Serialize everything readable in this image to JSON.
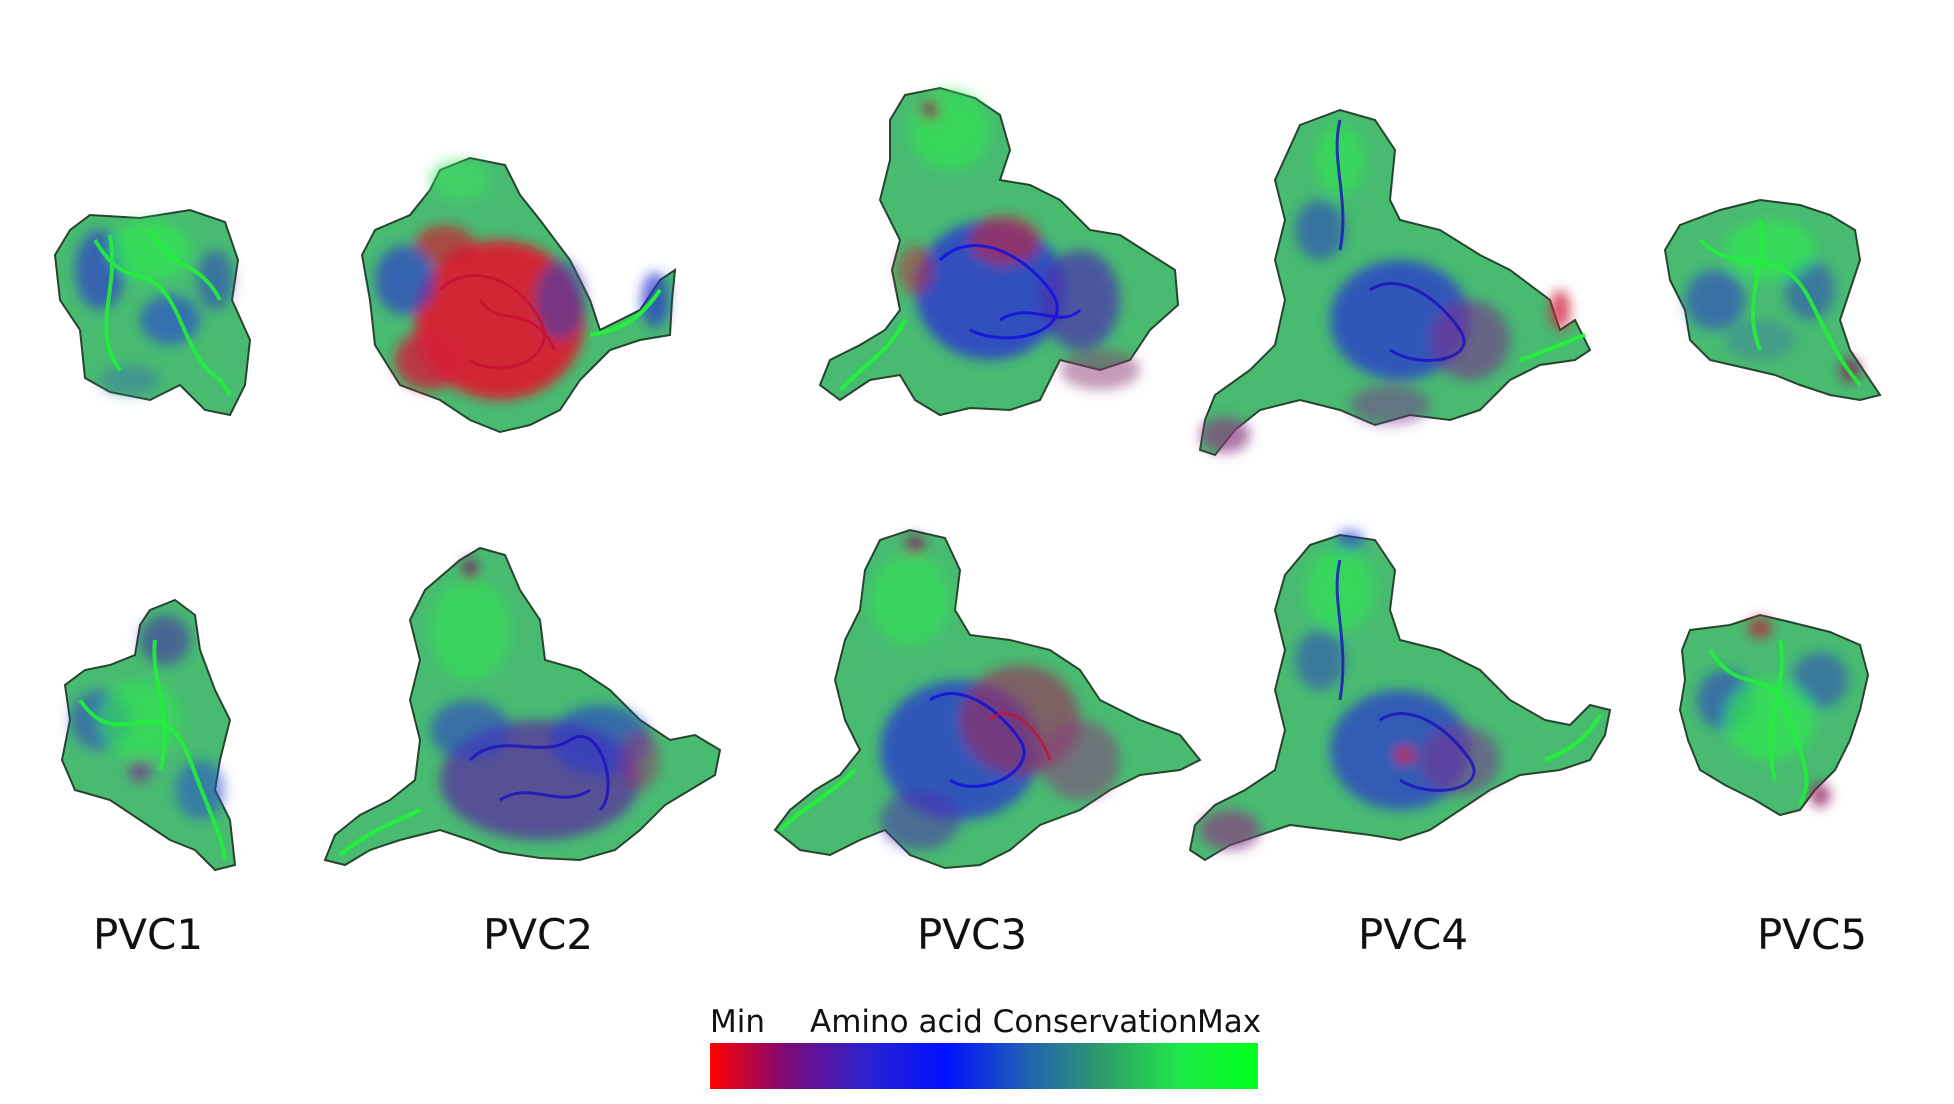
{
  "figure": {
    "proteins": [
      {
        "id": "pvc1",
        "label": "PVC1"
      },
      {
        "id": "pvc2",
        "label": "PVC2"
      },
      {
        "id": "pvc3",
        "label": "PVC3"
      },
      {
        "id": "pvc4",
        "label": "PVC4"
      },
      {
        "id": "pvc5",
        "label": "PVC5"
      }
    ],
    "colorbar": {
      "min_label": "Min",
      "title": "Amino acid Conservation",
      "max_label": "Max",
      "gradient_stops": [
        "#ff0000",
        "#7a0a7a",
        "#2a22cf",
        "#0011ff",
        "#1f5fb8",
        "#2f9a6a",
        "#1ee84a",
        "#00ff1a"
      ]
    },
    "colors": {
      "conserved_green": "#3ecf55",
      "bright_green": "#22f03a",
      "blue": "#2a35d0",
      "purple": "#7a2f8f",
      "red": "#e0182b",
      "teal": "#2f8f7a"
    }
  }
}
